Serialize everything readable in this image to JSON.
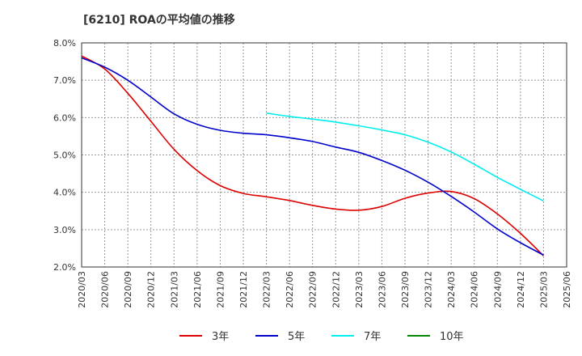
{
  "chart_data": {
    "type": "line",
    "title": "[6210]  ROAの平均値の推移",
    "xlabel": "",
    "ylabel": "",
    "ylim": [
      2.0,
      8.0
    ],
    "y_ticks": [
      "2.0%",
      "3.0%",
      "4.0%",
      "5.0%",
      "6.0%",
      "7.0%",
      "8.0%"
    ],
    "x": [
      "2020/03",
      "2020/06",
      "2020/09",
      "2020/12",
      "2021/03",
      "2021/06",
      "2021/09",
      "2021/12",
      "2022/03",
      "2022/06",
      "2022/09",
      "2022/12",
      "2023/03",
      "2023/06",
      "2023/09",
      "2023/12",
      "2024/03",
      "2024/06",
      "2024/09",
      "2024/12",
      "2025/03",
      "2025/06"
    ],
    "grid": true,
    "legend_position": "bottom",
    "series": [
      {
        "name": "3年",
        "color": "#dd0000",
        "values": [
          7.65,
          7.3,
          6.65,
          5.9,
          5.15,
          4.58,
          4.18,
          3.97,
          3.88,
          3.78,
          3.65,
          3.55,
          3.52,
          3.62,
          3.84,
          3.98,
          4.02,
          3.83,
          3.42,
          2.9,
          2.3,
          null
        ]
      },
      {
        "name": "5年",
        "color": "#0000cc",
        "values": [
          7.6,
          7.35,
          7.0,
          6.55,
          6.1,
          5.82,
          5.66,
          5.58,
          5.54,
          5.46,
          5.36,
          5.21,
          5.07,
          4.85,
          4.59,
          4.27,
          3.89,
          3.47,
          3.02,
          2.65,
          2.32,
          null
        ]
      },
      {
        "name": "7年",
        "color": "#00eeee",
        "values": [
          null,
          null,
          null,
          null,
          null,
          null,
          null,
          null,
          6.12,
          6.03,
          5.96,
          5.88,
          5.78,
          5.67,
          5.54,
          5.34,
          5.08,
          4.75,
          4.4,
          4.08,
          3.77,
          null
        ]
      },
      {
        "name": "10年",
        "color": "#008800",
        "values": [
          null,
          null,
          null,
          null,
          null,
          null,
          null,
          null,
          null,
          null,
          null,
          null,
          null,
          null,
          null,
          null,
          null,
          null,
          null,
          null,
          null,
          null
        ]
      }
    ]
  }
}
